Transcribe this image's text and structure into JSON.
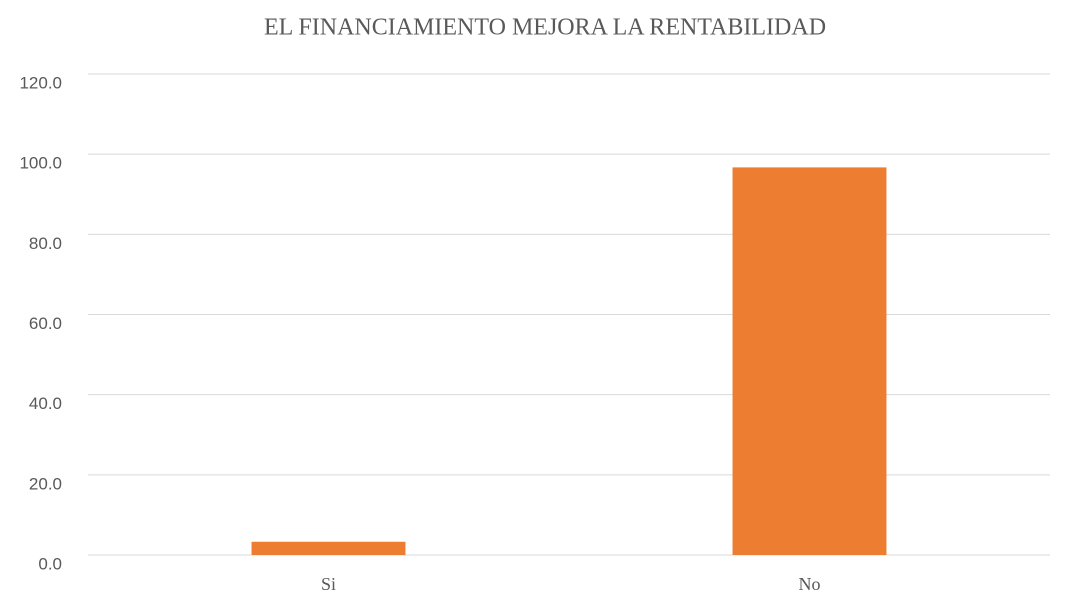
{
  "chart_data": {
    "type": "bar",
    "title": "EL FINANCIAMIENTO MEJORA LA RENTABILIDAD",
    "categories": [
      "Si",
      "No"
    ],
    "values": [
      3.3,
      96.7
    ],
    "color": "#ed7d31",
    "ylim": [
      0,
      120
    ],
    "yticks": [
      {
        "value": 0,
        "label": "0.0"
      },
      {
        "value": 20,
        "label": "20.0"
      },
      {
        "value": 40,
        "label": "40.0"
      },
      {
        "value": 60,
        "label": "60.0"
      },
      {
        "value": 80,
        "label": "80.0"
      },
      {
        "value": 100,
        "label": "100.0"
      },
      {
        "value": 120,
        "label": "120.0"
      }
    ],
    "grid": true
  }
}
